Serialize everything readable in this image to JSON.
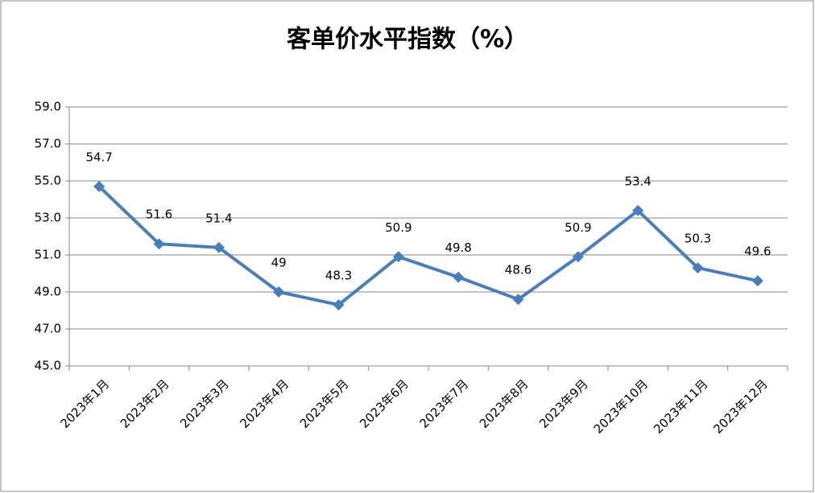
{
  "chart_data": {
    "type": "line",
    "title": "客单价水平指数（%）",
    "categories": [
      "2023年1月",
      "2023年2月",
      "2023年3月",
      "2023年4月",
      "2023年5月",
      "2023年6月",
      "2023年7月",
      "2023年8月",
      "2023年9月",
      "2023年10月",
      "2023年11月",
      "2023年12月"
    ],
    "values": [
      54.7,
      51.6,
      51.4,
      49.0,
      48.3,
      50.9,
      49.8,
      48.6,
      50.9,
      53.4,
      50.3,
      49.6
    ],
    "color": "#4a7ebb",
    "ylim": [
      45,
      59
    ],
    "yticks": [
      {
        "value": 45,
        "label": "45.0"
      },
      {
        "value": 47,
        "label": "47.0"
      },
      {
        "value": 49,
        "label": "49.0"
      },
      {
        "value": 51,
        "label": "51.0"
      },
      {
        "value": 53,
        "label": "53.0"
      },
      {
        "value": 55,
        "label": "55.0"
      },
      {
        "value": 57,
        "label": "57.0"
      },
      {
        "value": 59,
        "label": "59.0"
      }
    ],
    "grid": true
  }
}
